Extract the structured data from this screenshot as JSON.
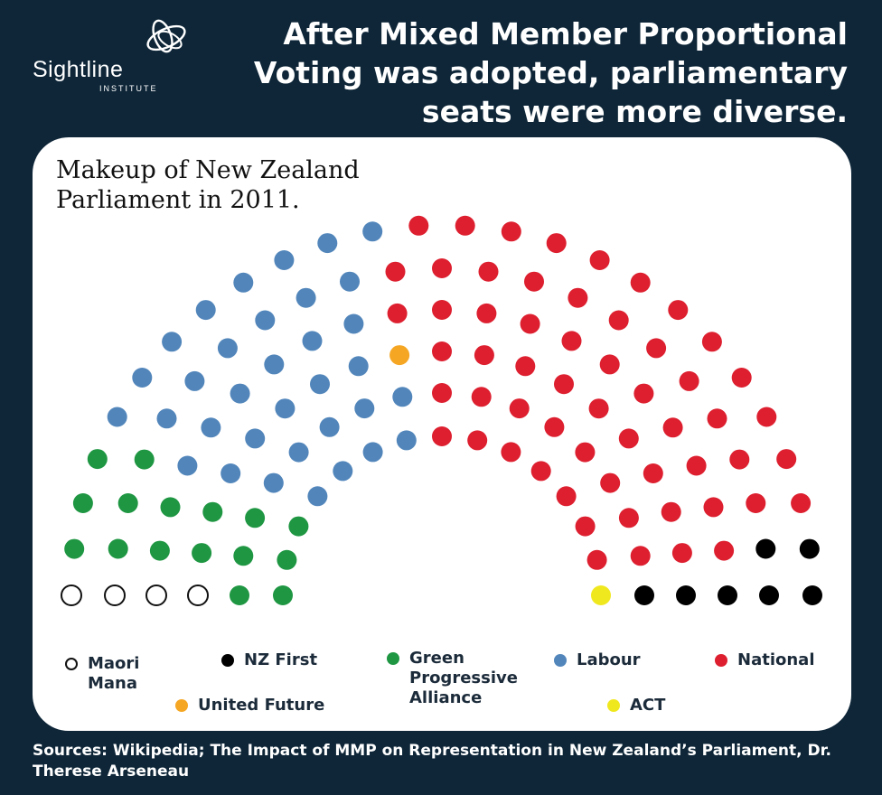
{
  "logo": {
    "name": "Sightline",
    "sub": "INSTITUTE"
  },
  "headline": "After Mixed Member Proportional Voting was adopted, parliamentary seats were more diverse.",
  "chart_data": {
    "type": "parliament",
    "title": "Makeup of New Zealand Parliament in 2011.",
    "total_seats": 121,
    "parties": [
      {
        "name": "Maori Mana",
        "seats": 4,
        "color": "#ffffff",
        "outline": "#111111"
      },
      {
        "name": "Green Progressive Alliance",
        "seats": 16,
        "color": "#1e9642"
      },
      {
        "name": "Labour",
        "seats": 34,
        "color": "#5286bb"
      },
      {
        "name": "United Future",
        "seats": 1,
        "color": "#f5a623"
      },
      {
        "name": "National",
        "seats": 58,
        "color": "#dd1f2f"
      },
      {
        "name": "NZ First",
        "seats": 7,
        "color": "#000000"
      },
      {
        "name": "ACT",
        "seats": 1,
        "color": "#f0e81f"
      }
    ],
    "legend": [
      {
        "label": "Maori\nMana",
        "color": "#ffffff",
        "outline": "#111111"
      },
      {
        "label": "NZ First",
        "color": "#000000"
      },
      {
        "label": "Green\nProgressive\nAlliance",
        "color": "#1e9642"
      },
      {
        "label": "Labour",
        "color": "#5286bb"
      },
      {
        "label": "National",
        "color": "#dd1f2f"
      },
      {
        "label": "United Future",
        "color": "#f5a623"
      },
      {
        "label": "ACT",
        "color": "#f0e81f"
      }
    ]
  },
  "footer": "Sources: Wikipedia; The Impact of MMP on Representation in New Zealand’s Parliament, Dr. Therese Arseneau"
}
